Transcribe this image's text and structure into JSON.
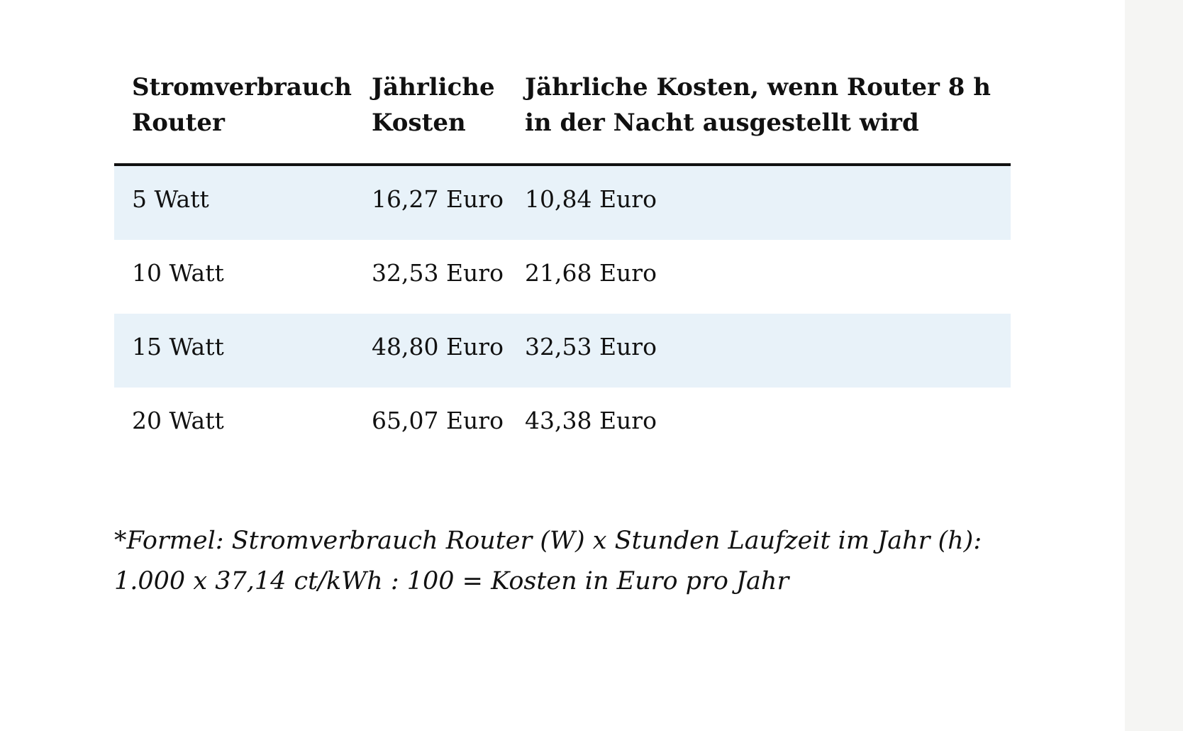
{
  "table": {
    "headers": [
      "Stromverbrauch Router",
      "Jährliche Kosten",
      "Jährliche Kosten, wenn Router 8 h in der Nacht ausgestellt wird"
    ],
    "rows": [
      [
        "5 Watt",
        "16,27 Euro",
        "10,84 Euro"
      ],
      [
        "10 Watt",
        "32,53 Euro",
        "21,68 Euro"
      ],
      [
        "15 Watt",
        "48,80 Euro",
        "32,53 Euro"
      ],
      [
        "20 Watt",
        "65,07 Euro",
        "43,38 Euro"
      ]
    ]
  },
  "footnote": "*Formel: Stromverbrauch Router (W) x Stunden Laufzeit im Jahr (h): 1.000 x 37,14 ct/kWh : 100 = Kosten in Euro pro Jahr",
  "colors": {
    "stripe": "#e8f2f9",
    "gutter": "#f5f5f3",
    "rule": "#111111"
  }
}
